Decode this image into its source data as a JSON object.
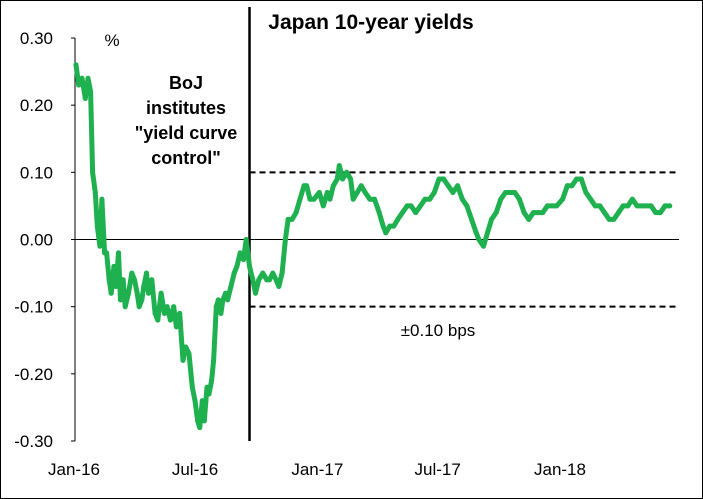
{
  "chart_data": {
    "type": "line",
    "title": "Japan 10-year yields",
    "ylabel": "%",
    "xlabel": "",
    "ylim": [
      -0.3,
      0.3
    ],
    "y_ticks": [
      "0.30",
      "0.20",
      "0.10",
      "0.00",
      "-0.10",
      "-0.20",
      "-0.30"
    ],
    "x_ticks": [
      "Jan-16",
      "Jul-16",
      "Jan-17",
      "Jul-17",
      "Jan-18"
    ],
    "grid": false,
    "legend": "none",
    "line_color": "#1fb14f",
    "annotations": {
      "event_label": [
        "BoJ",
        "institutes",
        "\"yield curve",
        "control\""
      ],
      "event_date": "2016-09-21",
      "band_label": "±0.10 bps",
      "band_upper": 0.1,
      "band_lower": -0.1
    },
    "series": [
      {
        "values": [
          [
            "2016-01-04",
            0.26
          ],
          [
            "2016-01-08",
            0.23
          ],
          [
            "2016-01-13",
            0.24
          ],
          [
            "2016-01-18",
            0.21
          ],
          [
            "2016-01-22",
            0.24
          ],
          [
            "2016-01-26",
            0.22
          ],
          [
            "2016-01-29",
            0.1
          ],
          [
            "2016-02-02",
            0.07
          ],
          [
            "2016-02-05",
            0.02
          ],
          [
            "2016-02-09",
            -0.01
          ],
          [
            "2016-02-12",
            0.06
          ],
          [
            "2016-02-16",
            -0.02
          ],
          [
            "2016-02-19",
            -0.02
          ],
          [
            "2016-02-23",
            -0.06
          ],
          [
            "2016-02-26",
            -0.08
          ],
          [
            "2016-03-01",
            -0.04
          ],
          [
            "2016-03-04",
            -0.07
          ],
          [
            "2016-03-08",
            -0.02
          ],
          [
            "2016-03-11",
            -0.09
          ],
          [
            "2016-03-15",
            -0.06
          ],
          [
            "2016-03-18",
            -0.1
          ],
          [
            "2016-03-23",
            -0.08
          ],
          [
            "2016-03-28",
            -0.05
          ],
          [
            "2016-04-01",
            -0.06
          ],
          [
            "2016-04-05",
            -0.08
          ],
          [
            "2016-04-08",
            -0.1
          ],
          [
            "2016-04-12",
            -0.09
          ],
          [
            "2016-04-15",
            -0.07
          ],
          [
            "2016-04-19",
            -0.05
          ],
          [
            "2016-04-22",
            -0.08
          ],
          [
            "2016-04-27",
            -0.06
          ],
          [
            "2016-05-02",
            -0.11
          ],
          [
            "2016-05-06",
            -0.12
          ],
          [
            "2016-05-11",
            -0.08
          ],
          [
            "2016-05-16",
            -0.11
          ],
          [
            "2016-05-20",
            -0.1
          ],
          [
            "2016-05-25",
            -0.12
          ],
          [
            "2016-05-30",
            -0.1
          ],
          [
            "2016-06-03",
            -0.13
          ],
          [
            "2016-06-08",
            -0.11
          ],
          [
            "2016-06-13",
            -0.18
          ],
          [
            "2016-06-17",
            -0.16
          ],
          [
            "2016-06-22",
            -0.17
          ],
          [
            "2016-06-27",
            -0.22
          ],
          [
            "2016-07-01",
            -0.24
          ],
          [
            "2016-07-05",
            -0.27
          ],
          [
            "2016-07-08",
            -0.28
          ],
          [
            "2016-07-12",
            -0.24
          ],
          [
            "2016-07-15",
            -0.27
          ],
          [
            "2016-07-19",
            -0.22
          ],
          [
            "2016-07-22",
            -0.23
          ],
          [
            "2016-07-26",
            -0.21
          ],
          [
            "2016-07-29",
            -0.18
          ],
          [
            "2016-08-02",
            -0.1
          ],
          [
            "2016-08-05",
            -0.09
          ],
          [
            "2016-08-09",
            -0.11
          ],
          [
            "2016-08-12",
            -0.09
          ],
          [
            "2016-08-16",
            -0.08
          ],
          [
            "2016-08-19",
            -0.09
          ],
          [
            "2016-08-24",
            -0.07
          ],
          [
            "2016-08-29",
            -0.05
          ],
          [
            "2016-09-02",
            -0.04
          ],
          [
            "2016-09-07",
            -0.02
          ],
          [
            "2016-09-12",
            -0.03
          ],
          [
            "2016-09-16",
            0.0
          ],
          [
            "2016-09-21",
            -0.04
          ],
          [
            "2016-09-26",
            -0.06
          ],
          [
            "2016-09-30",
            -0.08
          ],
          [
            "2016-10-05",
            -0.06
          ],
          [
            "2016-10-11",
            -0.05
          ],
          [
            "2016-10-17",
            -0.06
          ],
          [
            "2016-10-21",
            -0.06
          ],
          [
            "2016-10-26",
            -0.05
          ],
          [
            "2016-10-31",
            -0.06
          ],
          [
            "2016-11-04",
            -0.07
          ],
          [
            "2016-11-09",
            -0.05
          ],
          [
            "2016-11-14",
            0.0
          ],
          [
            "2016-11-18",
            0.03
          ],
          [
            "2016-11-24",
            0.03
          ],
          [
            "2016-11-30",
            0.04
          ],
          [
            "2016-12-06",
            0.06
          ],
          [
            "2016-12-12",
            0.08
          ],
          [
            "2016-12-16",
            0.08
          ],
          [
            "2016-12-21",
            0.06
          ],
          [
            "2016-12-27",
            0.06
          ],
          [
            "2017-01-04",
            0.07
          ],
          [
            "2017-01-10",
            0.05
          ],
          [
            "2017-01-16",
            0.07
          ],
          [
            "2017-01-20",
            0.06
          ],
          [
            "2017-01-25",
            0.08
          ],
          [
            "2017-01-31",
            0.09
          ],
          [
            "2017-02-03",
            0.11
          ],
          [
            "2017-02-08",
            0.09
          ],
          [
            "2017-02-14",
            0.1
          ],
          [
            "2017-02-20",
            0.09
          ],
          [
            "2017-02-24",
            0.06
          ],
          [
            "2017-03-02",
            0.07
          ],
          [
            "2017-03-08",
            0.08
          ],
          [
            "2017-03-14",
            0.07
          ],
          [
            "2017-03-21",
            0.06
          ],
          [
            "2017-03-28",
            0.06
          ],
          [
            "2017-04-04",
            0.04
          ],
          [
            "2017-04-10",
            0.02
          ],
          [
            "2017-04-14",
            0.01
          ],
          [
            "2017-04-20",
            0.02
          ],
          [
            "2017-04-26",
            0.02
          ],
          [
            "2017-05-02",
            0.03
          ],
          [
            "2017-05-09",
            0.04
          ],
          [
            "2017-05-16",
            0.05
          ],
          [
            "2017-05-22",
            0.05
          ],
          [
            "2017-05-29",
            0.04
          ],
          [
            "2017-06-05",
            0.05
          ],
          [
            "2017-06-12",
            0.06
          ],
          [
            "2017-06-19",
            0.06
          ],
          [
            "2017-06-26",
            0.07
          ],
          [
            "2017-07-03",
            0.09
          ],
          [
            "2017-07-10",
            0.09
          ],
          [
            "2017-07-17",
            0.08
          ],
          [
            "2017-07-24",
            0.07
          ],
          [
            "2017-07-31",
            0.08
          ],
          [
            "2017-08-07",
            0.06
          ],
          [
            "2017-08-14",
            0.05
          ],
          [
            "2017-08-21",
            0.03
          ],
          [
            "2017-08-28",
            0.01
          ],
          [
            "2017-09-01",
            0.0
          ],
          [
            "2017-09-08",
            -0.01
          ],
          [
            "2017-09-14",
            0.01
          ],
          [
            "2017-09-20",
            0.03
          ],
          [
            "2017-09-27",
            0.04
          ],
          [
            "2017-10-04",
            0.06
          ],
          [
            "2017-10-11",
            0.07
          ],
          [
            "2017-10-18",
            0.07
          ],
          [
            "2017-10-25",
            0.07
          ],
          [
            "2017-11-01",
            0.06
          ],
          [
            "2017-11-08",
            0.04
          ],
          [
            "2017-11-15",
            0.03
          ],
          [
            "2017-11-22",
            0.04
          ],
          [
            "2017-11-29",
            0.04
          ],
          [
            "2017-12-06",
            0.04
          ],
          [
            "2017-12-13",
            0.05
          ],
          [
            "2017-12-20",
            0.05
          ],
          [
            "2017-12-27",
            0.05
          ],
          [
            "2018-01-05",
            0.06
          ],
          [
            "2018-01-12",
            0.08
          ],
          [
            "2018-01-19",
            0.08
          ],
          [
            "2018-01-26",
            0.09
          ],
          [
            "2018-02-02",
            0.09
          ],
          [
            "2018-02-09",
            0.07
          ],
          [
            "2018-02-16",
            0.06
          ],
          [
            "2018-02-23",
            0.05
          ],
          [
            "2018-03-02",
            0.05
          ],
          [
            "2018-03-09",
            0.04
          ],
          [
            "2018-03-16",
            0.03
          ],
          [
            "2018-03-23",
            0.03
          ],
          [
            "2018-03-30",
            0.04
          ],
          [
            "2018-04-06",
            0.05
          ],
          [
            "2018-04-13",
            0.05
          ],
          [
            "2018-04-20",
            0.06
          ],
          [
            "2018-04-27",
            0.05
          ],
          [
            "2018-05-04",
            0.05
          ],
          [
            "2018-05-11",
            0.05
          ],
          [
            "2018-05-18",
            0.05
          ],
          [
            "2018-05-25",
            0.04
          ],
          [
            "2018-06-01",
            0.04
          ],
          [
            "2018-06-08",
            0.05
          ],
          [
            "2018-06-15",
            0.05
          ]
        ]
      }
    ]
  }
}
